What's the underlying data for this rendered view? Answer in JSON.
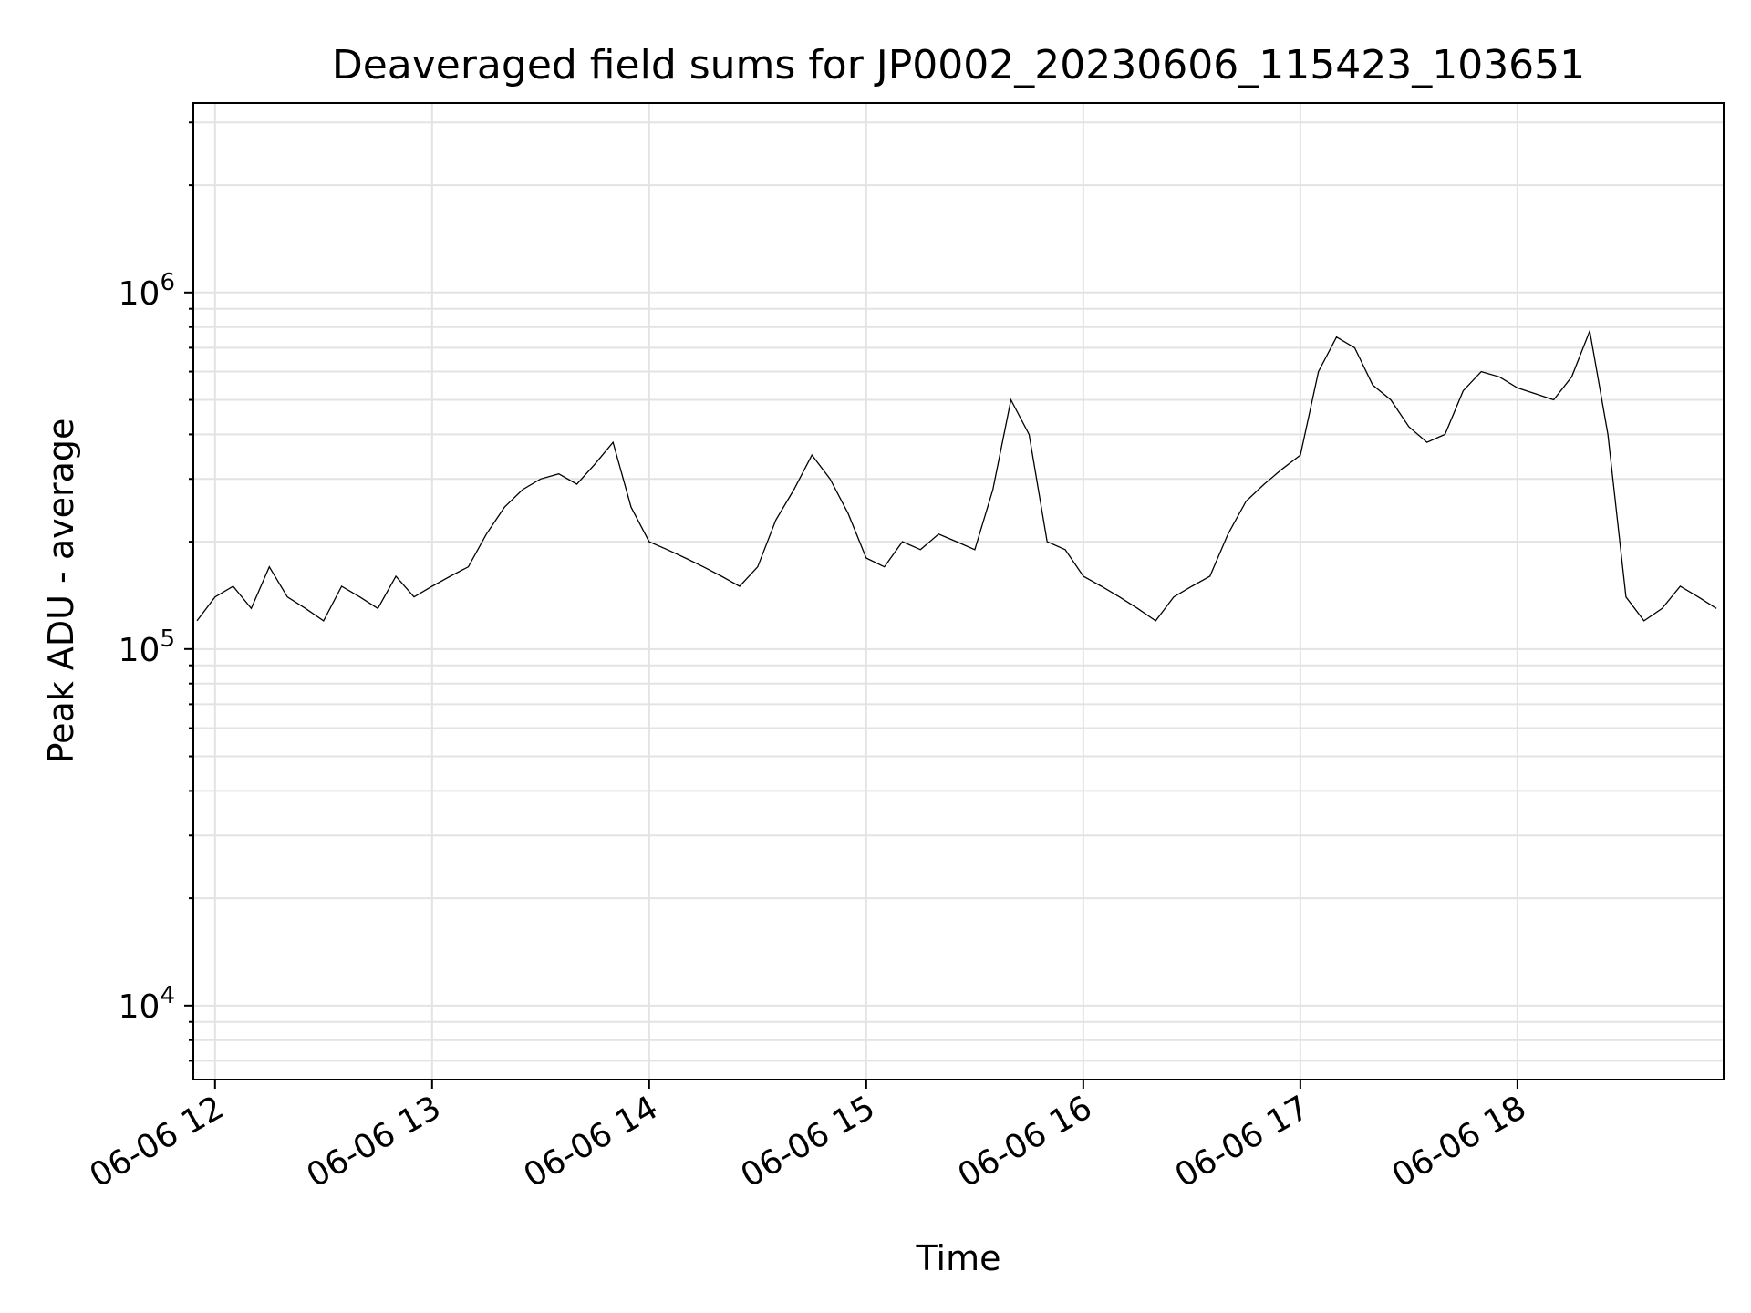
{
  "chart_data": {
    "type": "line",
    "title": "Deaveraged field sums for JP0002_20230606_115423_103651",
    "xlabel": "Time",
    "ylabel": "Peak ADU - average",
    "yscale": "log",
    "ylim": [
      6200,
      3400000
    ],
    "xlim": [
      "06-06 11:54",
      "06-06 18:57"
    ],
    "grid": true,
    "x_ticks": [
      "06-06 12",
      "06-06 13",
      "06-06 14",
      "06-06 15",
      "06-06 16",
      "06-06 17",
      "06-06 18"
    ],
    "y_ticks": [
      {
        "base": "10",
        "exp": "4",
        "value": 10000
      },
      {
        "base": "10",
        "exp": "5",
        "value": 100000
      },
      {
        "base": "10",
        "exp": "6",
        "value": 1000000
      }
    ],
    "line_color": "#000000",
    "series": [
      {
        "x": [
          "06-06 11:55",
          "06-06 12:00",
          "06-06 12:05",
          "06-06 12:10",
          "06-06 12:15",
          "06-06 12:20",
          "06-06 12:25",
          "06-06 12:30",
          "06-06 12:35",
          "06-06 12:40",
          "06-06 12:45",
          "06-06 12:50",
          "06-06 12:55",
          "06-06 13:00",
          "06-06 13:05",
          "06-06 13:10",
          "06-06 13:15",
          "06-06 13:20",
          "06-06 13:25",
          "06-06 13:30",
          "06-06 13:35",
          "06-06 13:40",
          "06-06 13:45",
          "06-06 13:50",
          "06-06 13:55",
          "06-06 14:00",
          "06-06 14:05",
          "06-06 14:10",
          "06-06 14:15",
          "06-06 14:20",
          "06-06 14:25",
          "06-06 14:30",
          "06-06 14:35",
          "06-06 14:40",
          "06-06 14:45",
          "06-06 14:50",
          "06-06 14:55",
          "06-06 15:00",
          "06-06 15:05",
          "06-06 15:10",
          "06-06 15:15",
          "06-06 15:20",
          "06-06 15:25",
          "06-06 15:30",
          "06-06 15:35",
          "06-06 15:40",
          "06-06 15:45",
          "06-06 15:50",
          "06-06 15:55",
          "06-06 16:00",
          "06-06 16:05",
          "06-06 16:10",
          "06-06 16:15",
          "06-06 16:20",
          "06-06 16:25",
          "06-06 16:30",
          "06-06 16:35",
          "06-06 16:40",
          "06-06 16:45",
          "06-06 16:50",
          "06-06 16:55",
          "06-06 17:00",
          "06-06 17:05",
          "06-06 17:10",
          "06-06 17:15",
          "06-06 17:20",
          "06-06 17:25",
          "06-06 17:30",
          "06-06 17:35",
          "06-06 17:40",
          "06-06 17:45",
          "06-06 17:50",
          "06-06 17:55",
          "06-06 18:00",
          "06-06 18:05",
          "06-06 18:10",
          "06-06 18:15",
          "06-06 18:20",
          "06-06 18:25",
          "06-06 18:30",
          "06-06 18:35",
          "06-06 18:40",
          "06-06 18:45",
          "06-06 18:50",
          "06-06 18:55"
        ],
        "y": [
          120000,
          140000,
          150000,
          130000,
          170000,
          140000,
          130000,
          120000,
          150000,
          140000,
          130000,
          160000,
          140000,
          150000,
          160000,
          170000,
          210000,
          250000,
          280000,
          300000,
          310000,
          290000,
          330000,
          380000,
          250000,
          200000,
          190000,
          180000,
          170000,
          160000,
          150000,
          170000,
          230000,
          280000,
          350000,
          300000,
          240000,
          180000,
          170000,
          200000,
          190000,
          210000,
          200000,
          190000,
          280000,
          500000,
          400000,
          200000,
          190000,
          160000,
          150000,
          140000,
          130000,
          120000,
          140000,
          150000,
          160000,
          210000,
          260000,
          290000,
          320000,
          350000,
          600000,
          750000,
          700000,
          550000,
          500000,
          420000,
          380000,
          400000,
          530000,
          600000,
          580000,
          540000,
          520000,
          500000,
          580000,
          780000,
          400000,
          140000,
          120000,
          130000,
          150000,
          140000,
          130000
        ]
      }
    ]
  }
}
